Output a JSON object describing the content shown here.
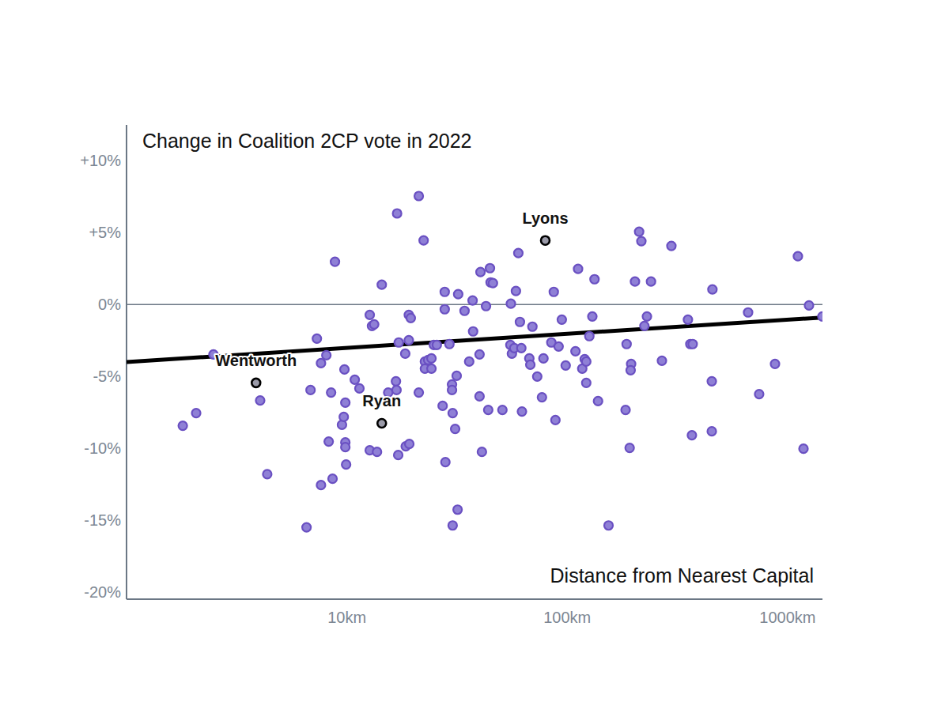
{
  "chart_data": {
    "type": "scatter",
    "title": "Change in Coalition 2CP vote in 2022",
    "x_label": "Distance from Nearest Capital",
    "log": "x",
    "grid": false,
    "xlim": [
      1,
      1440
    ],
    "xticks": [
      {
        "value": 10,
        "label": "10km"
      },
      {
        "value": 100,
        "label": "100km"
      },
      {
        "value": 1000,
        "label": "1000km"
      }
    ],
    "ylim": [
      -20.5,
      12.5
    ],
    "yticks": [
      {
        "value": 10,
        "label": "+10%"
      },
      {
        "value": 5,
        "label": "+5%"
      },
      {
        "value": 0,
        "label": "0%"
      },
      {
        "value": -5,
        "label": "-5%"
      },
      {
        "value": -10,
        "label": "-10%"
      },
      {
        "value": -15,
        "label": "-15%"
      },
      {
        "value": -20,
        "label": "-20%"
      }
    ],
    "series": [
      {
        "color": "#8f80d6",
        "marker": "circle",
        "x": [
          1.8,
          2.07,
          2.48,
          4.04,
          4.35,
          6.56,
          6.84,
          7.31,
          7.63,
          7.63,
          8.07,
          8.27,
          8.48,
          8.61,
          8.83,
          9.5,
          9.68,
          9.75,
          9.84,
          9.84,
          9.84,
          9.92,
          10.86,
          11.4,
          12.7,
          12.7,
          13.0,
          13.3,
          13.7,
          14.4,
          15.4,
          16.7,
          16.8,
          16.9,
          17.1,
          17.2,
          18.4,
          18.5,
          19.1,
          19.1,
          19.2,
          19.5,
          21.2,
          21.2,
          22.3,
          22.6,
          22.6,
          23.4,
          24.2,
          24.2,
          24.8,
          25.6,
          27.2,
          27.8,
          27.8,
          28.0,
          29.2,
          30.0,
          30.0,
          30.2,
          30.2,
          31.0,
          31.5,
          32.0,
          31.8,
          34.2,
          35.9,
          37.2,
          37.4,
          40.0,
          40.0,
          40.4,
          41.0,
          42.8,
          43.8,
          44.6,
          44.9,
          46.0,
          50.8,
          55.2,
          55.5,
          56.1,
          57.5,
          58.5,
          60.0,
          61.0,
          61.9,
          62.3,
          67.3,
          68.0,
          69.5,
          73.1,
          76.8,
          78.0,
          84.7,
          86.9,
          88.4,
          91.4,
          94.5,
          98.4,
          112,
          109,
          117,
          120,
          122,
          122,
          126,
          130,
          133,
          138,
          154,
          184,
          186,
          192,
          195,
          194,
          203,
          212,
          217,
          224,
          230,
          240,
          269,
          297,
          353,
          362,
          371,
          368,
          453,
          453,
          456,
          662,
          743,
          877,
          1114,
          1181,
          1251,
          1439
        ],
        "values": [
          -8.43,
          -7.55,
          -3.47,
          -6.67,
          -11.8,
          -15.5,
          -5.95,
          -2.37,
          -4.08,
          -12.56,
          -3.53,
          -9.53,
          -6.12,
          -12.12,
          2.98,
          -8.37,
          -7.82,
          -4.52,
          -6.83,
          -9.59,
          -9.92,
          -11.13,
          -5.23,
          -5.84,
          -0.72,
          -10.14,
          -1.49,
          -1.38,
          -10.25,
          1.38,
          -6.12,
          -5.34,
          -5.95,
          6.34,
          -10.47,
          -2.64,
          -3.42,
          -9.86,
          -2.48,
          -0.72,
          -9.7,
          -0.94,
          7.55,
          -6.12,
          4.46,
          -3.97,
          -4.46,
          -3.86,
          -3.75,
          -4.46,
          -2.81,
          -2.81,
          -7.05,
          0.88,
          -0.33,
          -10.96,
          -2.75,
          -5.56,
          -5.95,
          -7.55,
          -15.37,
          -8.65,
          -4.96,
          0.72,
          -14.27,
          -0.44,
          -3.97,
          0.28,
          -1.87,
          -3.47,
          -6.39,
          2.26,
          -10.25,
          -0.11,
          -7.33,
          2.53,
          1.54,
          1.49,
          -7.33,
          -2.81,
          0.06,
          -3.42,
          -3.03,
          0.94,
          3.58,
          -1.21,
          -3.03,
          -7.44,
          -3.75,
          -4.19,
          -1.54,
          -5.01,
          -6.45,
          -3.75,
          -2.64,
          0.88,
          -8.04,
          -2.92,
          -1.05,
          -4.24,
          2.48,
          -3.25,
          -4.46,
          -3.8,
          -3.97,
          -5.45,
          -2.2,
          -0.83,
          1.76,
          -6.72,
          -15.37,
          -7.33,
          -2.75,
          -9.97,
          -4.13,
          -4.57,
          1.6,
          5.07,
          4.41,
          -1.49,
          -0.83,
          1.6,
          -3.91,
          4.08,
          -1.05,
          -2.75,
          -2.75,
          -9.09,
          -5.34,
          -8.82,
          1.05,
          -0.55,
          -6.23,
          -4.13,
          3.36,
          -10.03,
          -0.06,
          -0.83
        ]
      }
    ],
    "trend": {
      "type": "line",
      "color": "#000000",
      "x": [
        1,
        1440
      ],
      "values": [
        -4.0,
        -0.9
      ]
    },
    "annotations": [
      {
        "text": "Wentworth",
        "x": 3.87,
        "y": -5.45
      },
      {
        "text": "Ryan",
        "x": 14.4,
        "y": -8.26
      },
      {
        "text": "Lyons",
        "x": 79.5,
        "y": 4.46
      }
    ]
  }
}
